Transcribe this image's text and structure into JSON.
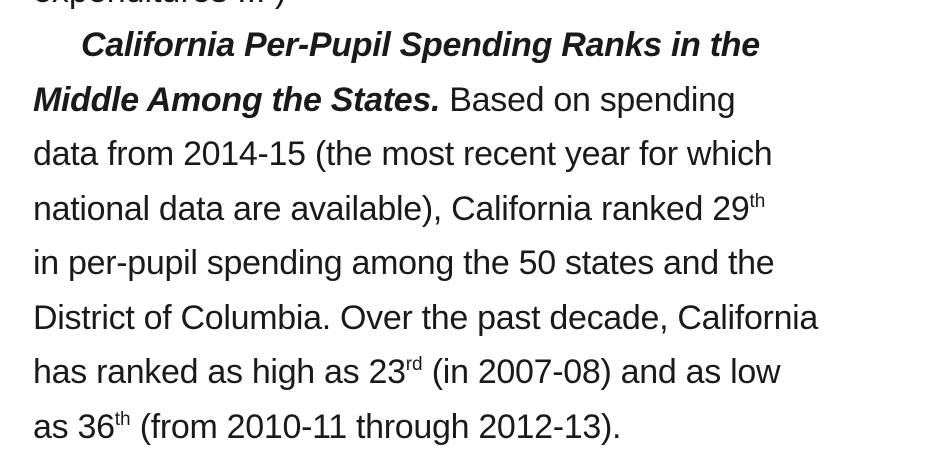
{
  "document": {
    "clipped_previous_line": "expenditures ... )",
    "paragraph": {
      "heading_line1": "California Per-Pupil Spending Ranks in the",
      "heading_line2": "Middle Among the States.",
      "line2_rest": " Based on spending",
      "line3": "data from 2014-15 (the most recent year for which",
      "line4_before": "national data are available), California ranked 29",
      "line4_sup": "th",
      "line5": "in per-pupil spending among the 50 states and the",
      "line6": "District of Columbia. Over the past decade, California",
      "line7_before": "has ranked as high as 23",
      "line7_sup": "rd",
      "line7_after": " (in 2007-08) and as low",
      "line8_before": "as 36",
      "line8_sup": "th",
      "line8_after": " (from 2010-11 through 2012-13)."
    }
  }
}
